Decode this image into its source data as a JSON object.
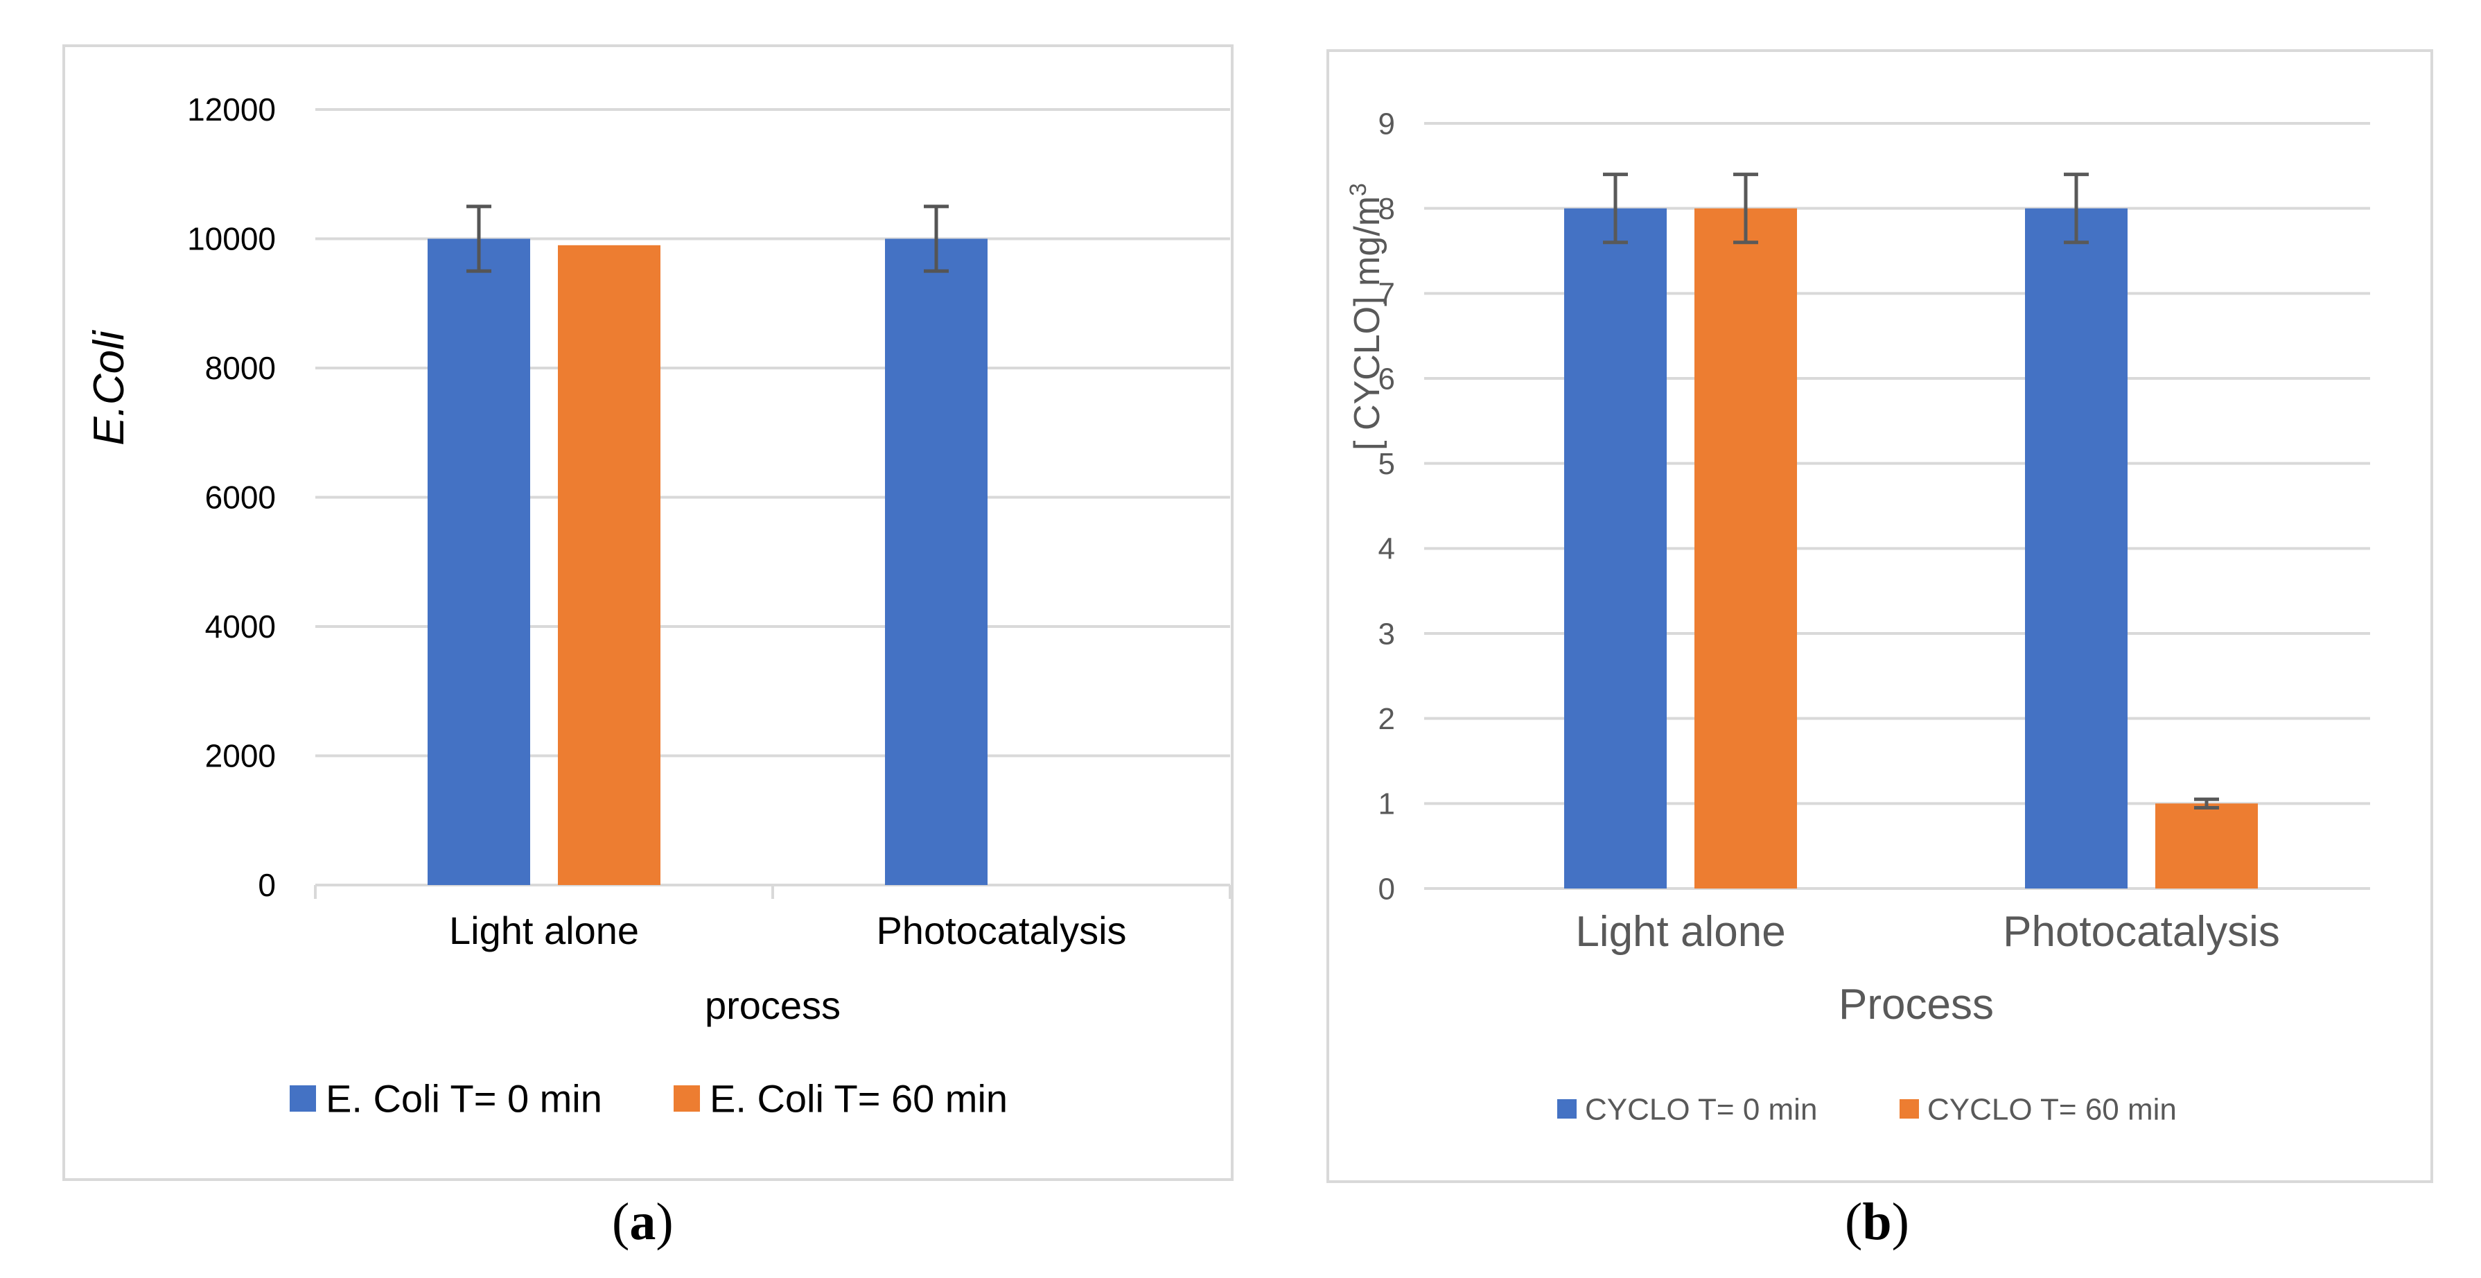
{
  "chart_data": [
    {
      "type": "bar",
      "title": "",
      "categories": [
        "Light alone",
        "Photocatalysis"
      ],
      "series": [
        {
          "name": "E. Coli T= 0 min",
          "color": "#4472C4",
          "values": [
            10000,
            10000
          ],
          "error": [
            500,
            500
          ]
        },
        {
          "name": "E. Coli T= 60 min",
          "color": "#ED7D31",
          "values": [
            9900,
            null
          ],
          "error": [
            0,
            0
          ]
        }
      ],
      "xlabel": "process",
      "ylabel": "E.Coli",
      "ylim": [
        0,
        12000
      ],
      "yticks": [
        "0",
        "2000",
        "4000",
        "6000",
        "8000",
        "10000",
        "12000"
      ],
      "grid": true,
      "legend": "bottom",
      "panel_label": "a"
    },
    {
      "type": "bar",
      "title": "",
      "categories": [
        "Light alone",
        "Photocatalysis"
      ],
      "series": [
        {
          "name": "CYCLO T= 0 min",
          "color": "#4472C4",
          "values": [
            8,
            8
          ],
          "error": [
            0.4,
            0.4
          ]
        },
        {
          "name": "CYCLO T= 60 min",
          "color": "#ED7D31",
          "values": [
            8,
            1
          ],
          "error": [
            0.4,
            0.05
          ]
        }
      ],
      "xlabel": "Process",
      "ylabel": "[ CYCLO] mg/m",
      "ylabel_superscript": "3",
      "ylim": [
        0,
        9
      ],
      "yticks": [
        "0",
        "1",
        "2",
        "3",
        "4",
        "5",
        "6",
        "7",
        "8",
        "9"
      ],
      "grid": true,
      "legend": "bottom",
      "panel_label": "b"
    }
  ]
}
